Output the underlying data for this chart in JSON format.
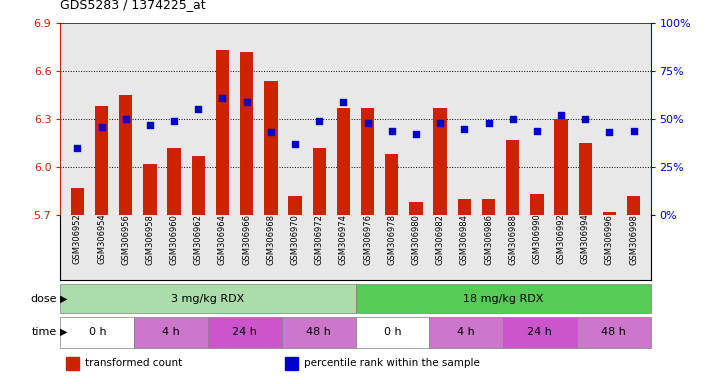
{
  "title": "GDS5283 / 1374225_at",
  "samples": [
    "GSM306952",
    "GSM306954",
    "GSM306956",
    "GSM306958",
    "GSM306960",
    "GSM306962",
    "GSM306964",
    "GSM306966",
    "GSM306968",
    "GSM306970",
    "GSM306972",
    "GSM306974",
    "GSM306976",
    "GSM306978",
    "GSM306980",
    "GSM306982",
    "GSM306984",
    "GSM306986",
    "GSM306988",
    "GSM306990",
    "GSM306992",
    "GSM306994",
    "GSM306996",
    "GSM306998"
  ],
  "transformed_count": [
    5.87,
    6.38,
    6.45,
    6.02,
    6.12,
    6.07,
    6.73,
    6.72,
    6.54,
    5.82,
    6.12,
    6.37,
    6.37,
    6.08,
    5.78,
    6.37,
    5.8,
    5.8,
    6.17,
    5.83,
    6.3,
    6.15,
    5.72,
    5.82
  ],
  "percentile_rank": [
    35,
    46,
    50,
    47,
    49,
    55,
    61,
    59,
    43,
    37,
    49,
    59,
    48,
    44,
    42,
    48,
    45,
    48,
    50,
    44,
    52,
    50,
    43,
    44
  ],
  "ylim_left": [
    5.7,
    6.9
  ],
  "ylim_right": [
    0,
    100
  ],
  "yticks_left": [
    5.7,
    6.0,
    6.3,
    6.6,
    6.9
  ],
  "yticks_right": [
    0,
    25,
    50,
    75,
    100
  ],
  "bar_color": "#cc2200",
  "dot_color": "#0000cc",
  "bar_bottom": 5.7,
  "bg_color": "#e8e8e8",
  "dose_groups": [
    {
      "label": "3 mg/kg RDX",
      "start": 0,
      "end": 12,
      "color": "#aaddaa"
    },
    {
      "label": "18 mg/kg RDX",
      "start": 12,
      "end": 24,
      "color": "#55cc55"
    }
  ],
  "time_groups": [
    {
      "label": "0 h",
      "start": 0,
      "end": 3,
      "color": "#ffffff"
    },
    {
      "label": "4 h",
      "start": 3,
      "end": 6,
      "color": "#cc77cc"
    },
    {
      "label": "24 h",
      "start": 6,
      "end": 9,
      "color": "#cc55cc"
    },
    {
      "label": "48 h",
      "start": 9,
      "end": 12,
      "color": "#cc77cc"
    },
    {
      "label": "0 h",
      "start": 12,
      "end": 15,
      "color": "#ffffff"
    },
    {
      "label": "4 h",
      "start": 15,
      "end": 18,
      "color": "#cc77cc"
    },
    {
      "label": "24 h",
      "start": 18,
      "end": 21,
      "color": "#cc55cc"
    },
    {
      "label": "48 h",
      "start": 21,
      "end": 24,
      "color": "#cc77cc"
    }
  ],
  "legend_items": [
    {
      "label": "transformed count",
      "color": "#cc2200"
    },
    {
      "label": "percentile rank within the sample",
      "color": "#0000cc"
    }
  ],
  "grid_lines": [
    6.0,
    6.3,
    6.6
  ]
}
